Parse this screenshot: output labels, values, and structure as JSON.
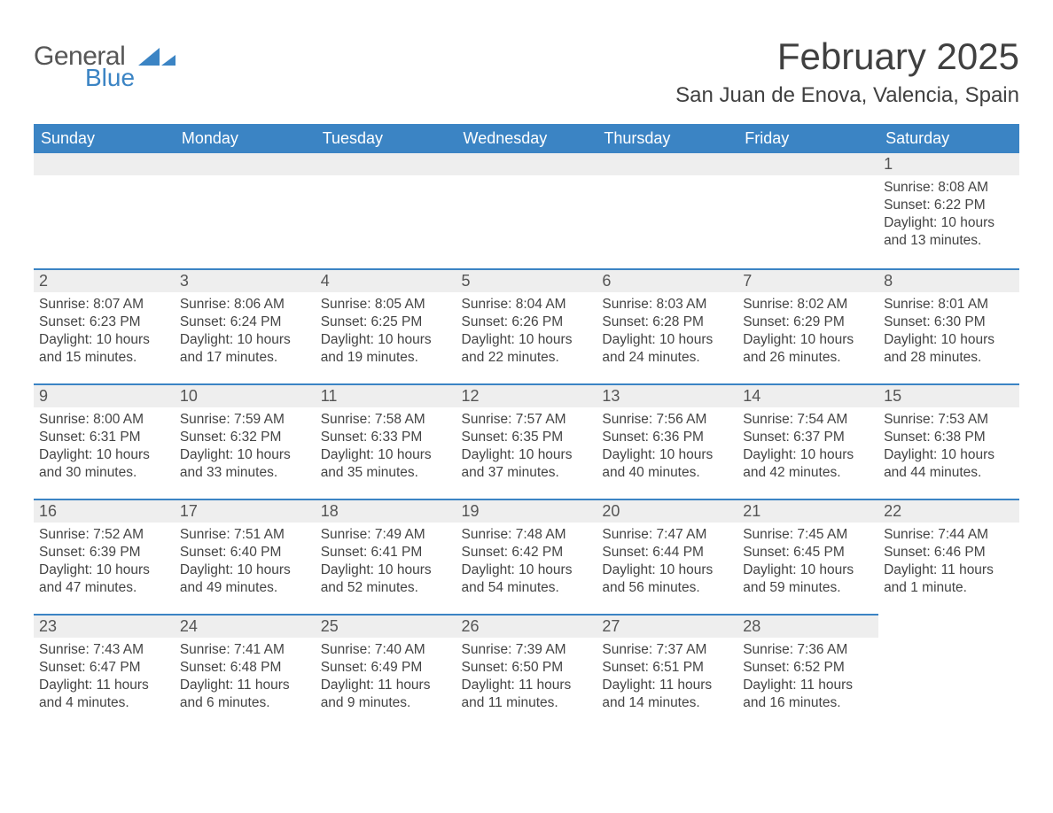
{
  "logo": {
    "general": "General",
    "blue": "Blue"
  },
  "title": "February 2025",
  "location": "San Juan de Enova, Valencia, Spain",
  "columns": [
    "Sunday",
    "Monday",
    "Tuesday",
    "Wednesday",
    "Thursday",
    "Friday",
    "Saturday"
  ],
  "colors": {
    "header_bg": "#3b84c4",
    "header_text": "#ffffff",
    "daynum_bg": "#eeeeee",
    "daynum_border": "#3b84c4",
    "body_text": "#444444",
    "logo_gray": "#565656",
    "logo_blue": "#3b84c4",
    "page_bg": "#ffffff"
  },
  "typography": {
    "title_fontsize": 42,
    "location_fontsize": 24,
    "th_fontsize": 18,
    "daynum_fontsize": 18,
    "body_fontsize": 15.5
  },
  "label_sunrise": "Sunrise:",
  "label_sunset": "Sunset:",
  "label_daylight": "Daylight:",
  "weeks": [
    [
      null,
      null,
      null,
      null,
      null,
      null,
      {
        "n": "1",
        "sunrise": "8:08 AM",
        "sunset": "6:22 PM",
        "daylight": "10 hours and 13 minutes."
      }
    ],
    [
      {
        "n": "2",
        "sunrise": "8:07 AM",
        "sunset": "6:23 PM",
        "daylight": "10 hours and 15 minutes."
      },
      {
        "n": "3",
        "sunrise": "8:06 AM",
        "sunset": "6:24 PM",
        "daylight": "10 hours and 17 minutes."
      },
      {
        "n": "4",
        "sunrise": "8:05 AM",
        "sunset": "6:25 PM",
        "daylight": "10 hours and 19 minutes."
      },
      {
        "n": "5",
        "sunrise": "8:04 AM",
        "sunset": "6:26 PM",
        "daylight": "10 hours and 22 minutes."
      },
      {
        "n": "6",
        "sunrise": "8:03 AM",
        "sunset": "6:28 PM",
        "daylight": "10 hours and 24 minutes."
      },
      {
        "n": "7",
        "sunrise": "8:02 AM",
        "sunset": "6:29 PM",
        "daylight": "10 hours and 26 minutes."
      },
      {
        "n": "8",
        "sunrise": "8:01 AM",
        "sunset": "6:30 PM",
        "daylight": "10 hours and 28 minutes."
      }
    ],
    [
      {
        "n": "9",
        "sunrise": "8:00 AM",
        "sunset": "6:31 PM",
        "daylight": "10 hours and 30 minutes."
      },
      {
        "n": "10",
        "sunrise": "7:59 AM",
        "sunset": "6:32 PM",
        "daylight": "10 hours and 33 minutes."
      },
      {
        "n": "11",
        "sunrise": "7:58 AM",
        "sunset": "6:33 PM",
        "daylight": "10 hours and 35 minutes."
      },
      {
        "n": "12",
        "sunrise": "7:57 AM",
        "sunset": "6:35 PM",
        "daylight": "10 hours and 37 minutes."
      },
      {
        "n": "13",
        "sunrise": "7:56 AM",
        "sunset": "6:36 PM",
        "daylight": "10 hours and 40 minutes."
      },
      {
        "n": "14",
        "sunrise": "7:54 AM",
        "sunset": "6:37 PM",
        "daylight": "10 hours and 42 minutes."
      },
      {
        "n": "15",
        "sunrise": "7:53 AM",
        "sunset": "6:38 PM",
        "daylight": "10 hours and 44 minutes."
      }
    ],
    [
      {
        "n": "16",
        "sunrise": "7:52 AM",
        "sunset": "6:39 PM",
        "daylight": "10 hours and 47 minutes."
      },
      {
        "n": "17",
        "sunrise": "7:51 AM",
        "sunset": "6:40 PM",
        "daylight": "10 hours and 49 minutes."
      },
      {
        "n": "18",
        "sunrise": "7:49 AM",
        "sunset": "6:41 PM",
        "daylight": "10 hours and 52 minutes."
      },
      {
        "n": "19",
        "sunrise": "7:48 AM",
        "sunset": "6:42 PM",
        "daylight": "10 hours and 54 minutes."
      },
      {
        "n": "20",
        "sunrise": "7:47 AM",
        "sunset": "6:44 PM",
        "daylight": "10 hours and 56 minutes."
      },
      {
        "n": "21",
        "sunrise": "7:45 AM",
        "sunset": "6:45 PM",
        "daylight": "10 hours and 59 minutes."
      },
      {
        "n": "22",
        "sunrise": "7:44 AM",
        "sunset": "6:46 PM",
        "daylight": "11 hours and 1 minute."
      }
    ],
    [
      {
        "n": "23",
        "sunrise": "7:43 AM",
        "sunset": "6:47 PM",
        "daylight": "11 hours and 4 minutes."
      },
      {
        "n": "24",
        "sunrise": "7:41 AM",
        "sunset": "6:48 PM",
        "daylight": "11 hours and 6 minutes."
      },
      {
        "n": "25",
        "sunrise": "7:40 AM",
        "sunset": "6:49 PM",
        "daylight": "11 hours and 9 minutes."
      },
      {
        "n": "26",
        "sunrise": "7:39 AM",
        "sunset": "6:50 PM",
        "daylight": "11 hours and 11 minutes."
      },
      {
        "n": "27",
        "sunrise": "7:37 AM",
        "sunset": "6:51 PM",
        "daylight": "11 hours and 14 minutes."
      },
      {
        "n": "28",
        "sunrise": "7:36 AM",
        "sunset": "6:52 PM",
        "daylight": "11 hours and 16 minutes."
      },
      null
    ]
  ]
}
